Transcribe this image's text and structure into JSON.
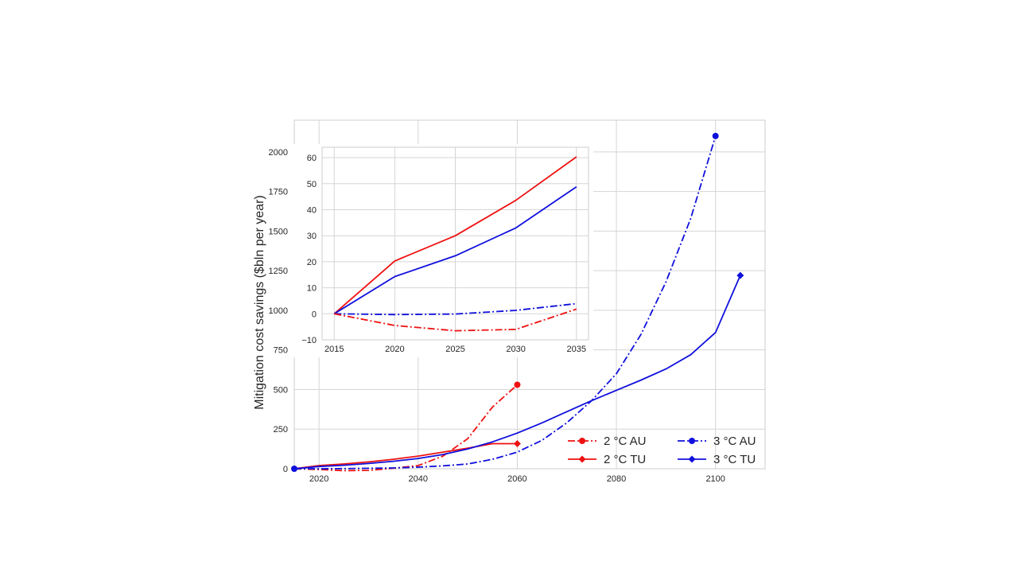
{
  "chart_data": [
    {
      "type": "line",
      "ylabel": "Mitigation cost savings ($bln per year)",
      "xlim": [
        2015,
        2110
      ],
      "ylim": [
        0,
        2200
      ],
      "xticks": [
        2020,
        2040,
        2060,
        2080,
        2100
      ],
      "yticks": [
        0,
        250,
        500,
        750,
        1000,
        1250,
        1500,
        1750,
        2000
      ],
      "grid": true,
      "legend": {
        "position": "lower-right",
        "columns": 2
      },
      "series": [
        {
          "name": "2 °C AU",
          "color": "#ee1111",
          "style": "dashdot",
          "marker": "circle",
          "x": [
            2015,
            2020,
            2025,
            2030,
            2035,
            2040,
            2045,
            2050,
            2055,
            2060
          ],
          "y": [
            0,
            -5,
            -12,
            -10,
            3,
            20,
            80,
            190,
            390,
            530
          ]
        },
        {
          "name": "2 °C TU",
          "color": "#ee1111",
          "style": "solid",
          "marker": "diamond",
          "x": [
            2015,
            2020,
            2025,
            2030,
            2035,
            2040,
            2045,
            2050,
            2055,
            2060
          ],
          "y": [
            0,
            20,
            30,
            43,
            60,
            80,
            105,
            130,
            158,
            158
          ]
        },
        {
          "name": "3 °C AU",
          "color": "#1010dd",
          "style": "dashdot",
          "marker": "circle",
          "x": [
            2015,
            2020,
            2025,
            2030,
            2035,
            2040,
            2045,
            2050,
            2055,
            2060,
            2065,
            2070,
            2075,
            2080,
            2085,
            2090,
            2095,
            2100
          ],
          "y": [
            0,
            0,
            1,
            3,
            5,
            10,
            18,
            30,
            60,
            105,
            180,
            290,
            430,
            600,
            850,
            1180,
            1580,
            2100
          ]
        },
        {
          "name": "3 °C TU",
          "color": "#1010dd",
          "style": "solid",
          "marker": "diamond",
          "x": [
            2015,
            2020,
            2025,
            2030,
            2035,
            2040,
            2045,
            2050,
            2055,
            2060,
            2065,
            2070,
            2075,
            2080,
            2085,
            2090,
            2095,
            2100,
            2105
          ],
          "y": [
            0,
            14,
            22,
            33,
            47,
            65,
            90,
            125,
            170,
            225,
            290,
            360,
            430,
            495,
            560,
            630,
            720,
            860,
            1220
          ]
        }
      ]
    },
    {
      "type": "line",
      "inset": true,
      "xlim": [
        2014,
        2036
      ],
      "ylim": [
        -10,
        64
      ],
      "xticks": [
        2015,
        2020,
        2025,
        2030,
        2035
      ],
      "yticks": [
        -10,
        0,
        10,
        20,
        30,
        40,
        50,
        60
      ],
      "ytick_labels": [
        "−10",
        "0",
        "10",
        "20",
        "30",
        "40",
        "50",
        "60"
      ],
      "grid": true,
      "series": [
        {
          "name": "2 °C TU",
          "color": "#ee1111",
          "style": "solid",
          "x": [
            2015,
            2020,
            2025,
            2030,
            2035
          ],
          "y": [
            0,
            20.3,
            30,
            43.6,
            60.3
          ]
        },
        {
          "name": "3 °C TU",
          "color": "#1010dd",
          "style": "solid",
          "x": [
            2015,
            2020,
            2025,
            2030,
            2035
          ],
          "y": [
            0,
            14.3,
            22.3,
            33,
            48.8
          ]
        },
        {
          "name": "3 °C AU",
          "color": "#1010dd",
          "style": "dashdot",
          "x": [
            2015,
            2020,
            2025,
            2030,
            2035
          ],
          "y": [
            0,
            -0.3,
            -0.1,
            1.3,
            3.9
          ]
        },
        {
          "name": "2 °C AU",
          "color": "#ee1111",
          "style": "dashdot",
          "x": [
            2015,
            2020,
            2025,
            2030,
            2035
          ],
          "y": [
            0,
            -4.5,
            -6.5,
            -6,
            1.8
          ]
        }
      ]
    }
  ]
}
